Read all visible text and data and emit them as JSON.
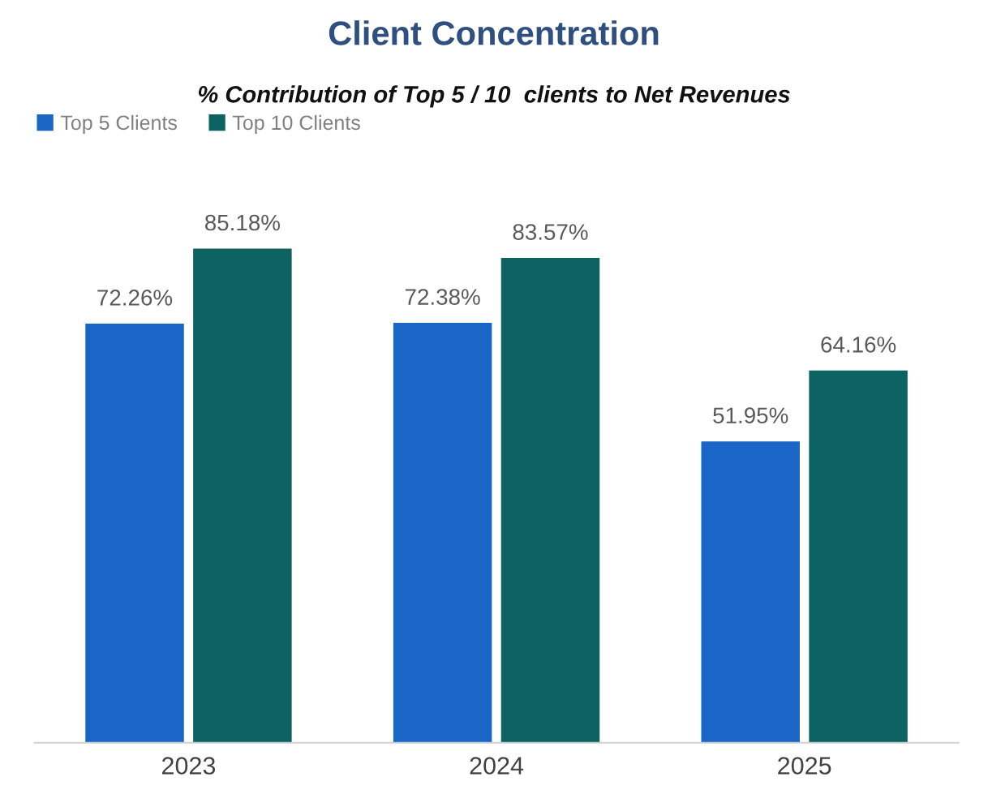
{
  "chart_data": {
    "type": "bar",
    "title": "Client Concentration",
    "subtitle": "% Contribution of Top 5 / 10  clients to Net Revenues",
    "categories": [
      "2023",
      "2024",
      "2025"
    ],
    "series": [
      {
        "name": "Top 5 Clients",
        "color": "#1a66c6",
        "values": [
          72.26,
          72.38,
          51.95
        ],
        "value_labels": [
          "72.26%",
          "72.38%",
          "51.95%"
        ]
      },
      {
        "name": "Top 10 Clients",
        "color": "#0d6361",
        "values": [
          85.18,
          83.57,
          64.16
        ],
        "value_labels": [
          "85.18%",
          "83.57%",
          "64.16%"
        ]
      }
    ],
    "legend": "top left",
    "grid": false
  }
}
